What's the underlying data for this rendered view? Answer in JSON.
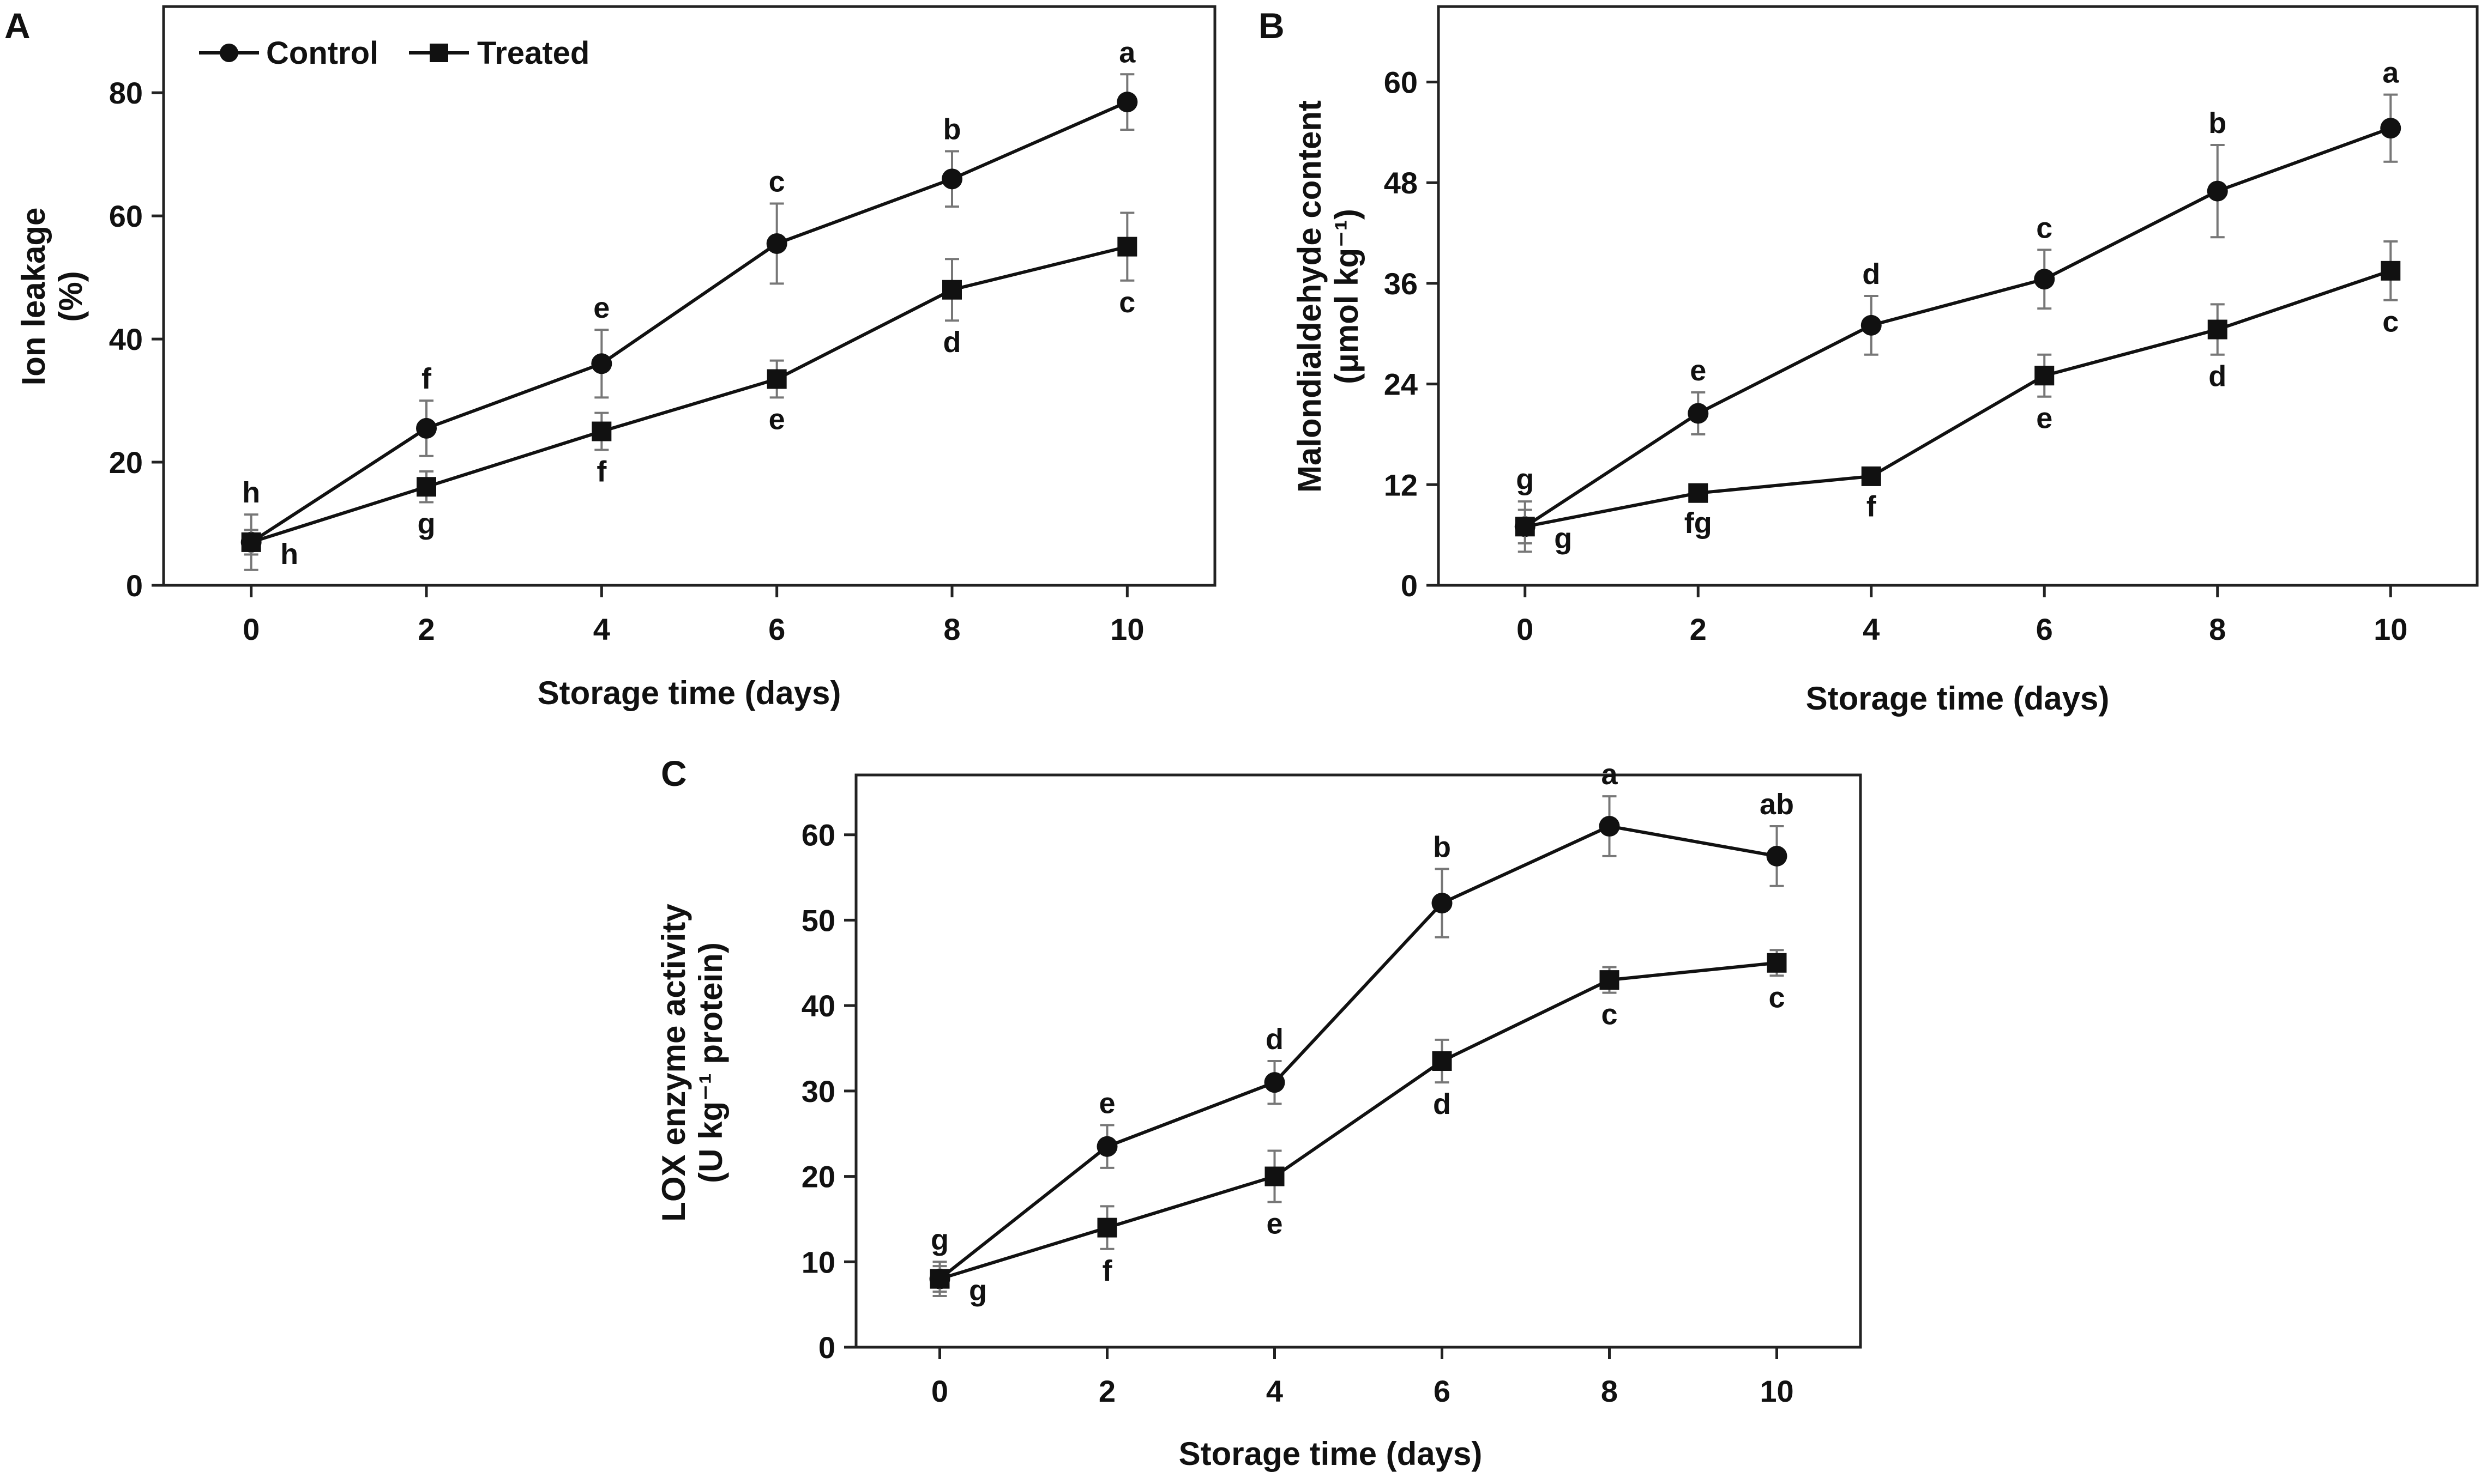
{
  "legend": {
    "series": [
      "Control",
      "Treated"
    ]
  },
  "chart_data": [
    {
      "id": "A",
      "panel_label": "A",
      "type": "line",
      "x": [
        0,
        2,
        4,
        6,
        8,
        10
      ],
      "xticks": [
        "0",
        "2",
        "4",
        "6",
        "8",
        "10"
      ],
      "xlabel": "Storage time (days)",
      "ylabel_lines": [
        "Ion leakage",
        "(%)"
      ],
      "xlim": [
        -1,
        11
      ],
      "ylim": [
        0,
        94
      ],
      "yticks": [
        "0",
        "20",
        "40",
        "60",
        "80"
      ],
      "ytick_values": [
        0,
        20,
        40,
        60,
        80
      ],
      "legend_position": "top-left",
      "series": [
        {
          "name": "Control",
          "marker": "circle",
          "values": [
            7,
            25.5,
            36,
            55.5,
            66,
            78.5
          ],
          "errors": [
            4.5,
            4.5,
            5.5,
            6.5,
            4.5,
            4.5
          ],
          "labels": [
            "h",
            "f",
            "e",
            "c",
            "b",
            "a"
          ],
          "label_sides": [
            "above",
            "above",
            "above",
            "above",
            "above",
            "above"
          ]
        },
        {
          "name": "Treated",
          "marker": "square",
          "values": [
            7,
            16,
            25,
            33.5,
            48,
            55
          ],
          "errors": [
            2,
            2.5,
            3,
            3,
            5,
            5.5
          ],
          "labels": [
            "h",
            "g",
            "f",
            "e",
            "d",
            "c"
          ],
          "label_sides": [
            "below",
            "below",
            "below",
            "below",
            "below",
            "below"
          ]
        }
      ]
    },
    {
      "id": "B",
      "panel_label": "B",
      "type": "line",
      "x": [
        0,
        2,
        4,
        6,
        8,
        10
      ],
      "xticks": [
        "0",
        "2",
        "4",
        "6",
        "8",
        "10"
      ],
      "xlabel": "Storage time (days)",
      "ylabel_lines": [
        "Malondialdehyde content",
        "(μmol kg⁻¹)"
      ],
      "xlim": [
        -1,
        11
      ],
      "ylim": [
        0,
        69
      ],
      "yticks": [
        "0",
        "12",
        "24",
        "36",
        "48",
        "60"
      ],
      "ytick_values": [
        0,
        12,
        24,
        36,
        48,
        60
      ],
      "legend_position": "none",
      "series": [
        {
          "name": "Control",
          "marker": "circle",
          "values": [
            7,
            20.5,
            31,
            36.5,
            47,
            54.5
          ],
          "errors": [
            3,
            2.5,
            3.5,
            3.5,
            5.5,
            4
          ],
          "labels": [
            "g",
            "e",
            "d",
            "c",
            "b",
            "a"
          ],
          "label_sides": [
            "above",
            "above",
            "above",
            "above",
            "above",
            "above"
          ]
        },
        {
          "name": "Treated",
          "marker": "square",
          "values": [
            7,
            11,
            13,
            25,
            30.5,
            37.5
          ],
          "errors": [
            2,
            1,
            1,
            2.5,
            3,
            3.5
          ],
          "labels": [
            "g",
            "fg",
            "f",
            "e",
            "d",
            "c"
          ],
          "label_sides": [
            "below",
            "below",
            "below",
            "below",
            "below",
            "below"
          ]
        }
      ]
    },
    {
      "id": "C",
      "panel_label": "C",
      "type": "line",
      "x": [
        0,
        2,
        4,
        6,
        8,
        10
      ],
      "xticks": [
        "0",
        "2",
        "4",
        "6",
        "8",
        "10"
      ],
      "xlabel": "Storage time (days)",
      "ylabel_lines": [
        "LOX enzyme activity",
        "(U kg⁻¹ protein)"
      ],
      "xlim": [
        -1,
        11
      ],
      "ylim": [
        0,
        67
      ],
      "yticks": [
        "0",
        "10",
        "20",
        "30",
        "40",
        "50",
        "60"
      ],
      "ytick_values": [
        0,
        10,
        20,
        30,
        40,
        50,
        60
      ],
      "legend_position": "none",
      "series": [
        {
          "name": "Control",
          "marker": "circle",
          "values": [
            8,
            23.5,
            31,
            52,
            61,
            57.5
          ],
          "errors": [
            2,
            2.5,
            2.5,
            4,
            3.5,
            3.5
          ],
          "labels": [
            "g",
            "e",
            "d",
            "b",
            "a",
            "ab"
          ],
          "label_sides": [
            "above",
            "above",
            "above",
            "above",
            "above",
            "above"
          ]
        },
        {
          "name": "Treated",
          "marker": "square",
          "values": [
            8,
            14,
            20,
            33.5,
            43,
            45
          ],
          "errors": [
            1.5,
            2.5,
            3,
            2.5,
            1.5,
            1.5
          ],
          "labels": [
            "g",
            "f",
            "e",
            "d",
            "c",
            "c"
          ],
          "label_sides": [
            "below",
            "below",
            "below",
            "below",
            "below",
            "below"
          ]
        }
      ]
    }
  ]
}
